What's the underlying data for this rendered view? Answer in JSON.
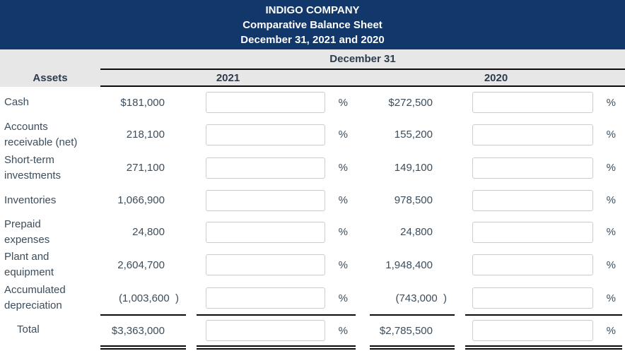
{
  "title": {
    "company": "INDIGO COMPANY",
    "report": "Comparative Balance Sheet",
    "period": "December 31, 2021 and 2020"
  },
  "table": {
    "span_header": "December 31",
    "row_header": "Assets",
    "year_headers": [
      "2021",
      "2020"
    ],
    "percent": "%",
    "rows": [
      {
        "label": "Cash",
        "amount_2021": "$181,000",
        "pct_2021": "",
        "amount_2020": "$272,500",
        "pct_2020": "",
        "negative": false,
        "is_total": false
      },
      {
        "label": "Accounts receivable (net)",
        "amount_2021": "218,100",
        "pct_2021": "",
        "amount_2020": "155,200",
        "pct_2020": "",
        "negative": false,
        "is_total": false
      },
      {
        "label": "Short-term investments",
        "amount_2021": "271,100",
        "pct_2021": "",
        "amount_2020": "149,100",
        "pct_2020": "",
        "negative": false,
        "is_total": false
      },
      {
        "label": "Inventories",
        "amount_2021": "1,066,900",
        "pct_2021": "",
        "amount_2020": "978,500",
        "pct_2020": "",
        "negative": false,
        "is_total": false
      },
      {
        "label": "Prepaid expenses",
        "amount_2021": "24,800",
        "pct_2021": "",
        "amount_2020": "24,800",
        "pct_2020": "",
        "negative": false,
        "is_total": false
      },
      {
        "label": "Plant and equipment",
        "amount_2021": "2,604,700",
        "pct_2021": "",
        "amount_2020": "1,948,400",
        "pct_2020": "",
        "negative": false,
        "is_total": false
      },
      {
        "label": "Accumulated depreciation",
        "amount_2021": "(1,003,600  )",
        "pct_2021": "",
        "amount_2020": "(743,000  )",
        "pct_2020": "",
        "negative": true,
        "is_total": false
      },
      {
        "label": "Total",
        "amount_2021": "$3,363,000",
        "pct_2021": "",
        "amount_2020": "$2,785,500",
        "pct_2020": "",
        "negative": false,
        "is_total": true
      }
    ]
  },
  "colors": {
    "header_bg": "#12376b",
    "band_bg": "#e7e7e7",
    "header_text": "#2c3b4d",
    "body_text": "#3c4d5c",
    "input_border": "#c7cdd1",
    "rule": "#0a0a0a"
  }
}
